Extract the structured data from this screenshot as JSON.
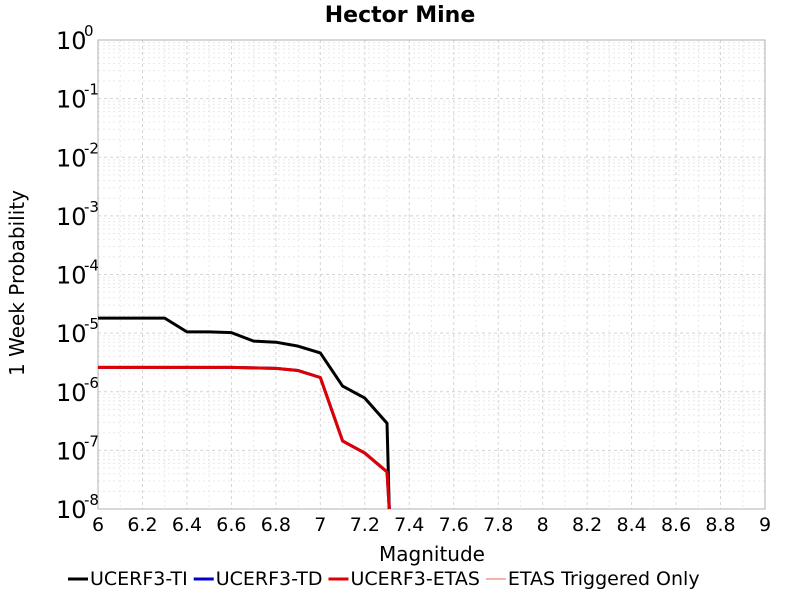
{
  "chart_data": {
    "type": "line",
    "title": "Hector Mine",
    "xlabel": "Magnitude",
    "ylabel": "1 Week Probability",
    "xlim": [
      6,
      9
    ],
    "ylim": [
      1e-08,
      1
    ],
    "yscale": "log",
    "x_ticks": [
      "6",
      "6.2",
      "6.4",
      "6.6",
      "6.8",
      "7",
      "7.2",
      "7.4",
      "7.6",
      "7.8",
      "8",
      "8.2",
      "8.4",
      "8.6",
      "8.8",
      "9"
    ],
    "y_tick_base": "10",
    "y_tick_exponents": [
      "0",
      "-1",
      "-2",
      "-3",
      "-4",
      "-5",
      "-6",
      "-7",
      "-8"
    ],
    "grid": true,
    "legend_position": "bottom",
    "series": [
      {
        "name": "UCERF3-TI",
        "color": "#000000",
        "x": [
          6.0,
          6.1,
          6.2,
          6.3,
          6.4,
          6.5,
          6.6,
          6.7,
          6.8,
          6.9,
          7.0,
          7.1,
          7.2,
          7.3,
          7.31
        ],
        "y": [
          1.8e-05,
          1.8e-05,
          1.8e-05,
          1.8e-05,
          1.05e-05,
          1.05e-05,
          1.02e-05,
          7.3e-06,
          7e-06,
          6e-06,
          4.6e-06,
          1.25e-06,
          7.8e-07,
          2.9e-07,
          1e-08
        ]
      },
      {
        "name": "UCERF3-TD",
        "color": "#0000cc",
        "x": [
          6.0,
          6.1,
          6.2,
          6.3,
          6.4,
          6.5,
          6.6,
          6.7,
          6.8,
          6.9,
          7.0,
          7.1,
          7.2,
          7.3,
          7.31
        ],
        "y": [
          2.6e-06,
          2.6e-06,
          2.6e-06,
          2.6e-06,
          2.6e-06,
          2.6e-06,
          2.6e-06,
          2.55e-06,
          2.5e-06,
          2.3e-06,
          1.75e-06,
          1.45e-07,
          9e-08,
          4.3e-08,
          1e-08
        ]
      },
      {
        "name": "UCERF3-ETAS",
        "color": "#e00000",
        "x": [
          6.0,
          6.1,
          6.2,
          6.3,
          6.4,
          6.5,
          6.6,
          6.7,
          6.8,
          6.9,
          7.0,
          7.1,
          7.2,
          7.3,
          7.31
        ],
        "y": [
          2.6e-06,
          2.6e-06,
          2.6e-06,
          2.6e-06,
          2.6e-06,
          2.6e-06,
          2.6e-06,
          2.55e-06,
          2.5e-06,
          2.3e-06,
          1.75e-06,
          1.45e-07,
          9e-08,
          4.3e-08,
          1e-08
        ]
      },
      {
        "name": "ETAS Triggered Only",
        "color": "#f08080",
        "x": [],
        "y": []
      }
    ]
  }
}
